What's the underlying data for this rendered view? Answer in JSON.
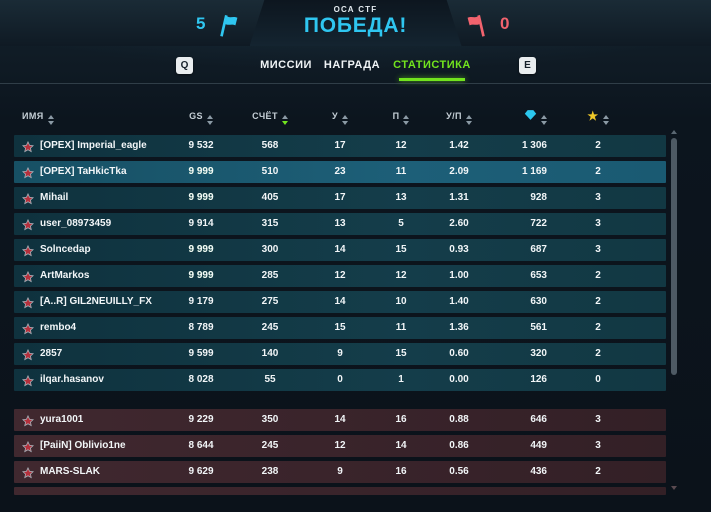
{
  "match": {
    "mode": "ОСА CTF",
    "result": "ПОБЕДА!",
    "team_left_score": "5",
    "team_right_score": "0"
  },
  "tabs": {
    "key_left": "Q",
    "key_right": "E",
    "missions": "МИССИИ",
    "reward": "НАГРАДА",
    "statistics": "СТАТИСТИКА",
    "active_tab": "СТАТИСТИКА"
  },
  "colors": {
    "accent_cyan": "#2fc6f0",
    "accent_red": "#f2636e",
    "tab_active_green": "#72e41e",
    "gs_red": "#fb3a41",
    "gs_pink": "#ff5f71",
    "gs_green": "#6fd86f",
    "currency_cyan": "#35c8ec",
    "stars_yellow": "#ecca22",
    "team1_row": "#123843",
    "team1_row_highlight": "#1d5f78",
    "team2_row": "#392630"
  },
  "icons": {
    "left_flag": "flag-icon",
    "right_flag": "flag-icon",
    "rank": "rank-star-icon",
    "currency_header": "gem-currency-icon",
    "stars_header": "star-rating-icon",
    "sort": "sort-chevrons-icon"
  },
  "table": {
    "col_name": "ИМЯ",
    "col_gs": "GS",
    "col_score": "СЧЁТ",
    "col_kills": "У",
    "col_deaths": "П",
    "col_ratio": "У/П",
    "sorted_by": "СЧЁТ",
    "team1": [
      {
        "name": "[OPEX] Imperial_eagle",
        "gs": "9 532",
        "gs_tone": "red",
        "score": "568",
        "kills": "17",
        "deaths": "12",
        "kd": "1.42",
        "currency": "1 306",
        "stars": "2",
        "highlight": false
      },
      {
        "name": "[OPEX] TaHkicTka",
        "gs": "9 999",
        "gs_tone": "green",
        "score": "510",
        "kills": "23",
        "deaths": "11",
        "kd": "2.09",
        "currency": "1 169",
        "stars": "2",
        "highlight": true
      },
      {
        "name": "Mihail",
        "gs": "9 999",
        "gs_tone": "green",
        "score": "405",
        "kills": "17",
        "deaths": "13",
        "kd": "1.31",
        "currency": "928",
        "stars": "3",
        "highlight": false
      },
      {
        "name": "user_08973459",
        "gs": "9 914",
        "gs_tone": "red",
        "score": "315",
        "kills": "13",
        "deaths": "5",
        "kd": "2.60",
        "currency": "722",
        "stars": "3",
        "highlight": false
      },
      {
        "name": "Solncedap",
        "gs": "9 999",
        "gs_tone": "green",
        "score": "300",
        "kills": "14",
        "deaths": "15",
        "kd": "0.93",
        "currency": "687",
        "stars": "3",
        "highlight": false
      },
      {
        "name": "ArtMarkos",
        "gs": "9 999",
        "gs_tone": "green",
        "score": "285",
        "kills": "12",
        "deaths": "12",
        "kd": "1.00",
        "currency": "653",
        "stars": "2",
        "highlight": false
      },
      {
        "name": "[A..R] GIL2NEUILLY_FX",
        "gs": "9 179",
        "gs_tone": "red",
        "score": "275",
        "kills": "14",
        "deaths": "10",
        "kd": "1.40",
        "currency": "630",
        "stars": "2",
        "highlight": false
      },
      {
        "name": "rembo4",
        "gs": "8 789",
        "gs_tone": "pink",
        "score": "245",
        "kills": "15",
        "deaths": "11",
        "kd": "1.36",
        "currency": "561",
        "stars": "2",
        "highlight": false
      },
      {
        "name": "2857",
        "gs": "9 599",
        "gs_tone": "red",
        "score": "140",
        "kills": "9",
        "deaths": "15",
        "kd": "0.60",
        "currency": "320",
        "stars": "2",
        "highlight": false
      },
      {
        "name": "ilqar.hasanov",
        "gs": "8 028",
        "gs_tone": "pink",
        "score": "55",
        "kills": "0",
        "deaths": "1",
        "kd": "0.00",
        "currency": "126",
        "stars": "0",
        "highlight": false
      }
    ],
    "team2": [
      {
        "name": "yura1001",
        "gs": "9 229",
        "gs_tone": "red",
        "score": "350",
        "kills": "14",
        "deaths": "16",
        "kd": "0.88",
        "currency": "646",
        "stars": "3",
        "highlight": false
      },
      {
        "name": "[PaiiN] Oblivio1ne",
        "gs": "8 644",
        "gs_tone": "pink",
        "score": "245",
        "kills": "12",
        "deaths": "14",
        "kd": "0.86",
        "currency": "449",
        "stars": "3",
        "highlight": false
      },
      {
        "name": "MARS-SLAK",
        "gs": "9 629",
        "gs_tone": "red",
        "score": "238",
        "kills": "9",
        "deaths": "16",
        "kd": "0.56",
        "currency": "436",
        "stars": "2",
        "highlight": false
      }
    ],
    "team2_partial_row": true
  }
}
